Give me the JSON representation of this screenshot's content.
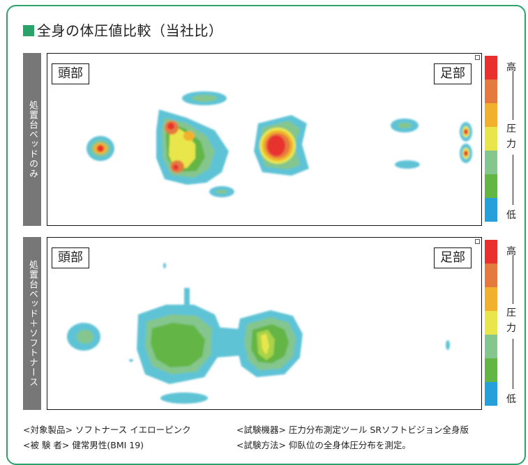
{
  "title": "全身の体圧値比較（当社比）",
  "accent_color": "#2aa36b",
  "panels": [
    {
      "label": "処置台ベッドのみ",
      "head_label": "頭部",
      "foot_label": "足部"
    },
    {
      "label": "処置台ベッド＋ソフトナース",
      "head_label": "頭部",
      "foot_label": "足部"
    }
  ],
  "scale": {
    "high": "高",
    "pressure": "圧",
    "force": "力",
    "low": "低",
    "colors": [
      "#e8302f",
      "#e57a3f",
      "#f2b12c",
      "#e9e64b",
      "#84c68d",
      "#63b544",
      "#26a0db"
    ]
  },
  "notes": {
    "product": "<対象製品> ソフトナース イエローピンク",
    "subject": "<被 験 者> 健常男性(BMI 19)",
    "equipment": "<試験機器> 圧力分布測定ツール SRソフトビジョン全身版",
    "method": "<試験方法> 仰臥位の全身体圧分布を測定。"
  }
}
